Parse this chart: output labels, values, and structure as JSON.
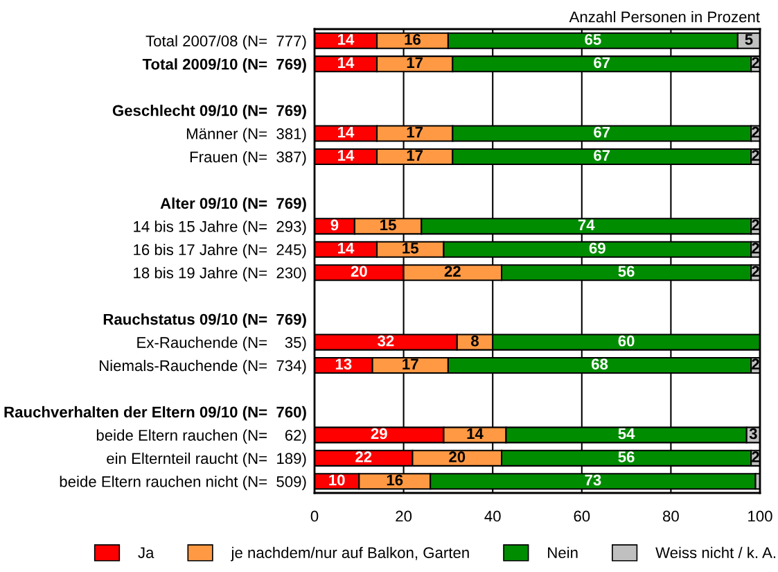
{
  "chart_data": {
    "type": "bar",
    "orientation": "horizontal",
    "stacked": true,
    "annotations": [
      "Anzahl Personen in Prozent"
    ],
    "categories": [
      "Total 2007/08 (N=  777)",
      "Total 2009/10 (N=  769)",
      null,
      "Geschlecht 09/10 (N=  769)",
      "Männer (N=  381)",
      "Frauen (N=  387)",
      null,
      "Alter 09/10 (N=  769)",
      "14 bis 15 Jahre (N=  293)",
      "16 bis 17 Jahre (N=  245)",
      "18 bis 19 Jahre (N=  230)",
      null,
      "Rauchstatus 09/10 (N=  769)",
      "Ex-Rauchende (N=    35)",
      "Niemals-Rauchende (N=  734)",
      null,
      "Rauchverhalten der Eltern 09/10 (N=  760)",
      "beide Eltern rauchen (N=    62)",
      "ein Elternteil raucht (N=  189)",
      "beide Eltern rauchen nicht (N=  509)"
    ],
    "series": [
      {
        "name": "Ja",
        "color": "#ff0000",
        "values": [
          14,
          14,
          null,
          null,
          14,
          14,
          null,
          null,
          9,
          14,
          20,
          null,
          null,
          32,
          13,
          null,
          null,
          29,
          22,
          10
        ],
        "value_labels": [
          "14",
          "14",
          null,
          null,
          "14",
          "14",
          null,
          null,
          "9",
          "14",
          "20",
          null,
          null,
          "32",
          "13",
          null,
          null,
          "29",
          "22",
          "10"
        ]
      },
      {
        "name": "je nachdem/nur auf Balkon, Garten",
        "color": "#ff9944",
        "values": [
          16,
          17,
          null,
          null,
          17,
          17,
          null,
          null,
          15,
          15,
          22,
          null,
          null,
          8,
          17,
          null,
          null,
          14,
          20,
          16
        ],
        "value_labels": [
          "16",
          "17",
          null,
          null,
          "17",
          "17",
          null,
          null,
          "15",
          "15",
          "22",
          null,
          null,
          "8",
          "17",
          null,
          null,
          "14",
          "20",
          "16"
        ]
      },
      {
        "name": "Nein",
        "color": "#008c00",
        "values": [
          65,
          67,
          null,
          null,
          67,
          67,
          null,
          null,
          74,
          69,
          56,
          null,
          null,
          60,
          68,
          null,
          null,
          54,
          56,
          73
        ],
        "value_labels": [
          "65",
          "67",
          null,
          null,
          "67",
          "67",
          null,
          null,
          "74",
          "69",
          "56",
          null,
          null,
          "60",
          "68",
          null,
          null,
          "54",
          "56",
          "73"
        ]
      },
      {
        "name": "Weiss nicht / k. A.",
        "color": "#c0c0c0",
        "values": [
          5,
          2,
          null,
          null,
          2,
          2,
          null,
          null,
          2,
          2,
          2,
          null,
          null,
          null,
          2,
          null,
          null,
          3,
          2,
          1
        ],
        "value_labels": [
          "5",
          "2",
          null,
          null,
          "2",
          "2",
          null,
          null,
          "2",
          "2",
          "2",
          null,
          null,
          null,
          "2",
          null,
          null,
          "3",
          "2",
          null
        ]
      }
    ],
    "xlim": [
      0,
      100
    ],
    "xticks": [
      0,
      20,
      40,
      60,
      80,
      100
    ],
    "grid": "x",
    "legend": "bottom"
  }
}
